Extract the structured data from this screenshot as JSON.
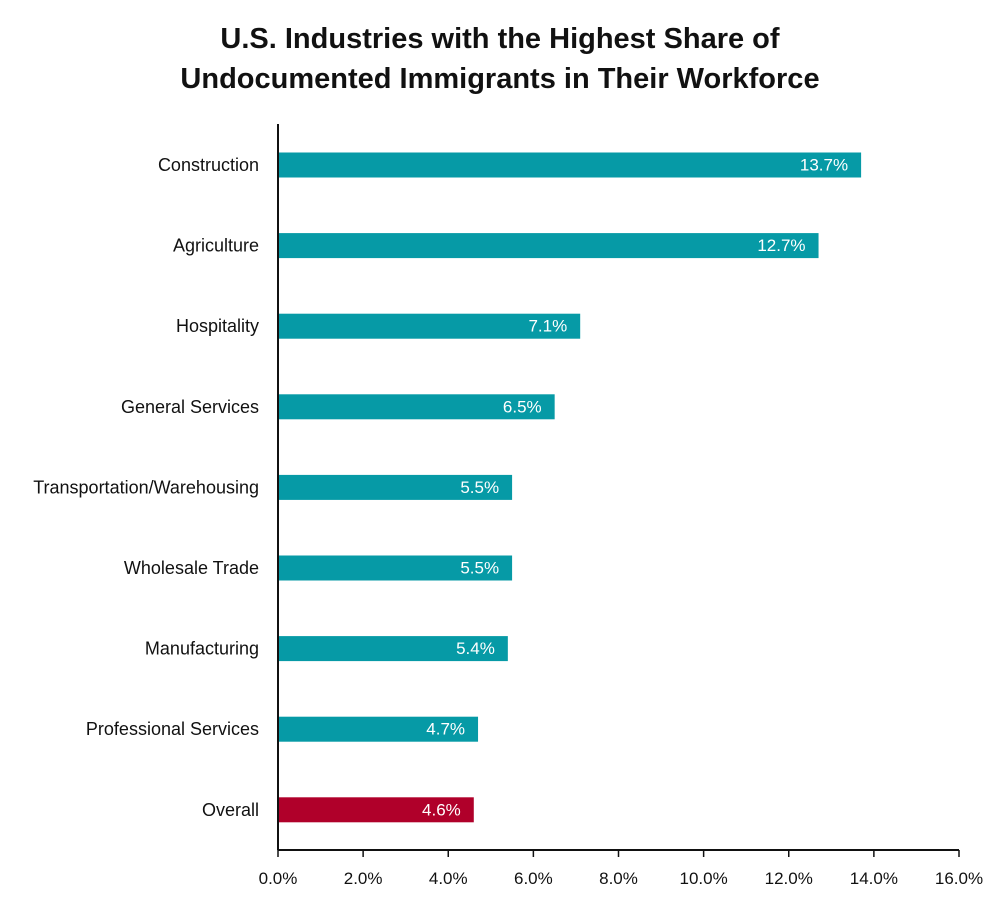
{
  "chart_data": {
    "type": "bar",
    "orientation": "horizontal",
    "title_lines": [
      "U.S. Industries with the Highest Share of",
      "Undocumented Immigrants in Their Workforce"
    ],
    "categories": [
      "Construction",
      "Agriculture",
      "Hospitality",
      "General Services",
      "Transportation/Warehousing",
      "Wholesale Trade",
      "Manufacturing",
      "Professional Services",
      "Overall"
    ],
    "values": [
      13.7,
      12.7,
      7.1,
      6.5,
      5.5,
      5.5,
      5.4,
      4.7,
      4.6
    ],
    "data_labels": [
      "13.7%",
      "12.7%",
      "7.1%",
      "6.5%",
      "5.5%",
      "5.5%",
      "5.4%",
      "4.7%",
      "4.6%"
    ],
    "xlim": [
      0,
      16
    ],
    "xticks": [
      0,
      2,
      4,
      6,
      8,
      10,
      12,
      14,
      16
    ],
    "xtick_labels": [
      "0.0%",
      "2.0%",
      "4.0%",
      "6.0%",
      "8.0%",
      "10.0%",
      "12.0%",
      "14.0%",
      "16.0%"
    ],
    "xlabel": "",
    "ylabel": "",
    "grid": false,
    "legend": "none",
    "colors": {
      "bar": "#069aa6",
      "highlight": "#b0002a",
      "axis": "#111111"
    },
    "highlight_category": "Overall"
  }
}
